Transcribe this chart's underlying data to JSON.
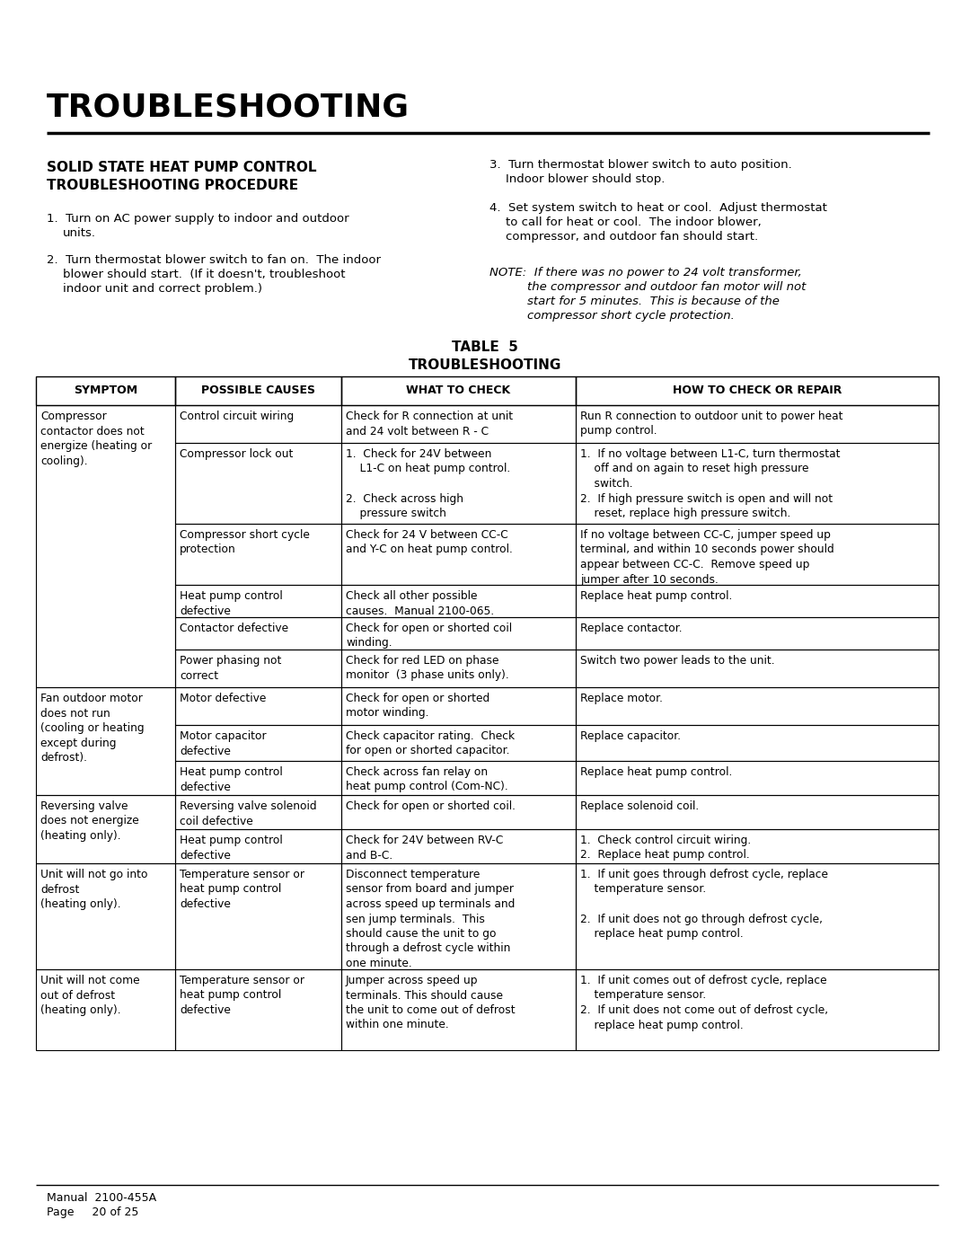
{
  "title": "TROUBLESHOOTING",
  "section_title_line1": "SOLID STATE HEAT PUMP CONTROL",
  "section_title_line2": "TROUBLESHOOTING PROCEDURE",
  "intro_left": [
    {
      "num": "1.",
      "text": "Turn on AC power supply to indoor and outdoor\nunits."
    },
    {
      "num": "2.",
      "text": "Turn thermostat blower switch to fan on.  The indoor\nblower should start.  (If it doesn't, troubleshoot\nindoor unit and correct problem.)"
    }
  ],
  "intro_right_3": "3.  Turn thermostat blower switch to auto position.\n    Indoor blower should stop.",
  "intro_right_4": "4.  Set system switch to heat or cool.  Adjust thermostat\n    to call for heat or cool.  The indoor blower,\n    compressor, and outdoor fan should start.",
  "note_label": "NOTE:  ",
  "note_text": "If there was no power to 24 volt transformer,\n       the compressor and outdoor fan motor will not\n       start for 5 minutes.  This is because of the\n       compressor short cycle protection.",
  "table_title_line1": "TABLE  5",
  "table_title_line2": "TROUBLESHOOTING",
  "col_headers": [
    "SYMPTOM",
    "POSSIBLE CAUSES",
    "WHAT TO CHECK",
    "HOW TO CHECK OR REPAIR"
  ],
  "rows": [
    {
      "symptom": "Compressor\ncontactor does not\nenergize (heating or\ncooling).",
      "cause": "Control circuit wiring",
      "what": "Check for R connection at unit\nand 24 volt between R - C",
      "how": "Run R connection to outdoor unit to power heat\npump control."
    },
    {
      "symptom": "",
      "cause": "Compressor lock out",
      "what": "1.  Check for 24V between\n    L1-C on heat pump control.\n\n2.  Check across high\n    pressure switch",
      "how": "1.  If no voltage between L1-C, turn thermostat\n    off and on again to reset high pressure\n    switch.\n2.  If high pressure switch is open and will not\n    reset, replace high pressure switch."
    },
    {
      "symptom": "",
      "cause": "Compressor short cycle\nprotection",
      "what": "Check for 24 V between CC-C\nand Y-C on heat pump control.",
      "how": "If no voltage between CC-C, jumper speed up\nterminal, and within 10 seconds power should\nappear between CC-C.  Remove speed up\njumper after 10 seconds."
    },
    {
      "symptom": "",
      "cause": "Heat pump control\ndefective",
      "what": "Check all other possible\ncauses.  Manual 2100-065.",
      "how": "Replace heat pump control."
    },
    {
      "symptom": "",
      "cause": "Contactor defective",
      "what": "Check for open or shorted coil\nwinding.",
      "how": "Replace contactor."
    },
    {
      "symptom": "",
      "cause": "Power phasing not\ncorrect",
      "what": "Check for red LED on phase\nmonitor  (3 phase units only).",
      "how": "Switch two power leads to the unit."
    },
    {
      "symptom": "Fan outdoor motor\ndoes not run\n(cooling or heating\nexcept during\ndefrost).",
      "cause": "Motor defective",
      "what": "Check for open or shorted\nmotor winding.",
      "how": "Replace motor."
    },
    {
      "symptom": "",
      "cause": "Motor capacitor\ndefective",
      "what": "Check capacitor rating.  Check\nfor open or shorted capacitor.",
      "how": "Replace capacitor."
    },
    {
      "symptom": "",
      "cause": "Heat pump control\ndefective",
      "what": "Check across fan relay on\nheat pump control (Com-NC).",
      "how": "Replace heat pump control."
    },
    {
      "symptom": "Reversing valve\ndoes not energize\n(heating only).",
      "cause": "Reversing valve solenoid\ncoil defective",
      "what": "Check for open or shorted coil.",
      "how": "Replace solenoid coil."
    },
    {
      "symptom": "",
      "cause": "Heat pump control\ndefective",
      "what": "Check for 24V between RV-C\nand B-C.",
      "how": "1.  Check control circuit wiring.\n2.  Replace heat pump control."
    },
    {
      "symptom": "Unit will not go into\ndefrost\n(heating only).",
      "cause": "Temperature sensor or\nheat pump control\ndefective",
      "what": "Disconnect temperature\nsensor from board and jumper\nacross speed up terminals and\nsen jump terminals.  This\nshould cause the unit to go\nthrough a defrost cycle within\none minute.",
      "how": "1.  If unit goes through defrost cycle, replace\n    temperature sensor.\n\n2.  If unit does not go through defrost cycle,\n    replace heat pump control."
    },
    {
      "symptom": "Unit will not come\nout of defrost\n(heating only).",
      "cause": "Temperature sensor or\nheat pump control\ndefective",
      "what": "Jumper across speed up\nterminals. This should cause\nthe unit to come out of defrost\nwithin one minute.",
      "how": "1.  If unit comes out of defrost cycle, replace\n    temperature sensor.\n2.  If unit does not come out of defrost cycle,\n    replace heat pump control."
    }
  ],
  "footer_line1": "Manual  2100-455A",
  "footer_line2": "Page     20 of 25",
  "bg_color": "#ffffff",
  "text_color": "#000000"
}
